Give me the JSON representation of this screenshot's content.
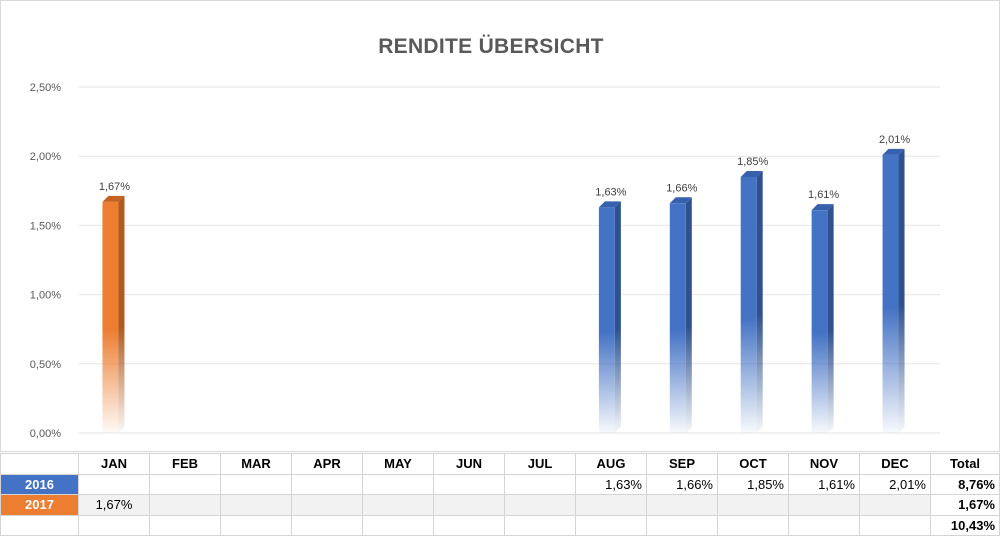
{
  "chart_data": {
    "type": "bar",
    "title": "RENDITE ÜBERSICHT",
    "categories": [
      "JAN",
      "FEB",
      "MAR",
      "APR",
      "MAY",
      "JUN",
      "JUL",
      "AUG",
      "SEP",
      "OCT",
      "NOV",
      "DEC"
    ],
    "series": [
      {
        "name": "2016",
        "color": "#4472c4",
        "values": [
          null,
          null,
          null,
          null,
          null,
          null,
          null,
          1.63,
          1.66,
          1.85,
          1.61,
          2.01
        ]
      },
      {
        "name": "2017",
        "color": "#ed7d31",
        "values": [
          1.67,
          null,
          null,
          null,
          null,
          null,
          null,
          null,
          null,
          null,
          null,
          null
        ]
      }
    ],
    "ylim": [
      0,
      2.5
    ],
    "yticks": [
      "0,00%",
      "0,50%",
      "1,00%",
      "1,50%",
      "2,00%",
      "2,50%"
    ],
    "grid": true,
    "xlabel": "",
    "ylabel": ""
  },
  "table": {
    "total_header": "Total",
    "rows": [
      {
        "label": "2016",
        "cells": [
          "",
          "",
          "",
          "",
          "",
          "",
          "",
          "1,63%",
          "1,66%",
          "1,85%",
          "1,61%",
          "2,01%"
        ],
        "total": "8,76%"
      },
      {
        "label": "2017",
        "cells": [
          "1,67%",
          "",
          "",
          "",
          "",
          "",
          "",
          "",
          "",
          "",
          "",
          ""
        ],
        "total": "1,67%"
      }
    ],
    "grand_total": "10,43%"
  }
}
